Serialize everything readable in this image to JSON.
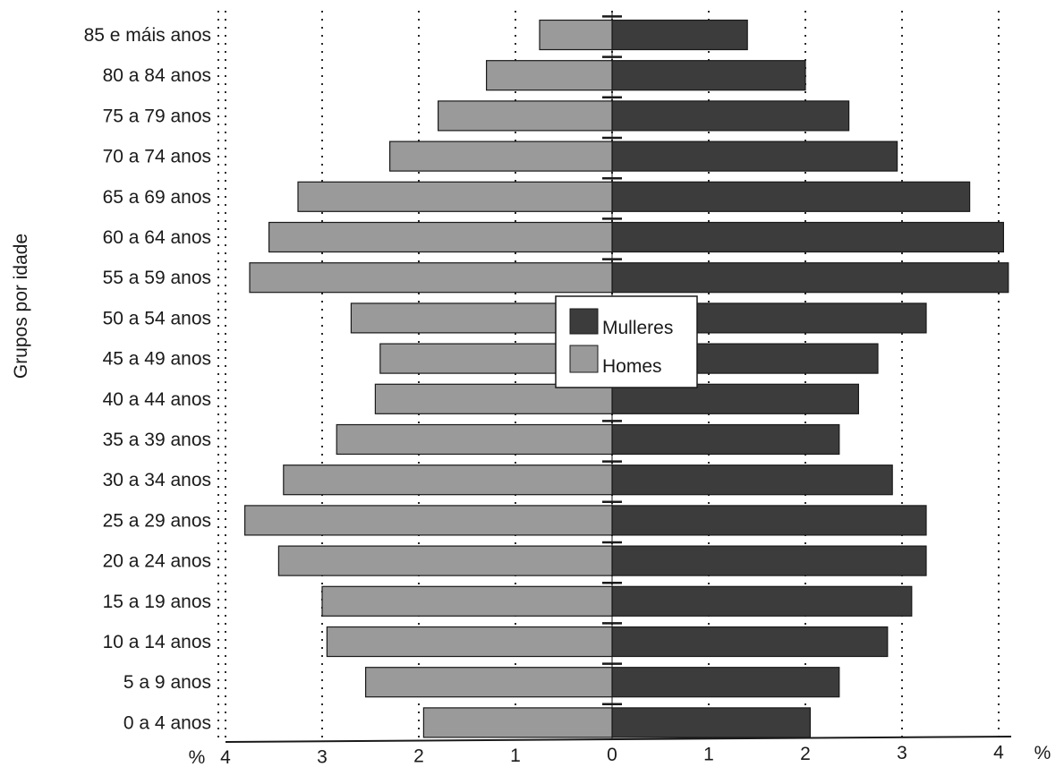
{
  "chart_data": {
    "type": "bar",
    "orientation": "horizontal",
    "layout": "population-pyramid",
    "ylabel": "Grupos por idade",
    "x_unit_left": "%",
    "x_unit_right": "%",
    "xlim": [
      -4,
      4
    ],
    "x_ticks": [
      -4,
      -3,
      -2,
      -1,
      0,
      1,
      2,
      3,
      4
    ],
    "x_tick_labels": [
      "4",
      "3",
      "2",
      "1",
      "0",
      "1",
      "2",
      "3",
      "4"
    ],
    "grid": "vertical dotted",
    "legend_position": "center",
    "categories": [
      "85 e máis anos",
      "80 a 84 anos",
      "75 a 79 anos",
      "70 a 74 anos",
      "65 a 69 anos",
      "60 a 64 anos",
      "55 a 59 anos",
      "50 a 54 anos",
      "45 a 49 anos",
      "40 a 44 anos",
      "35 a 39 anos",
      "30 a 34 anos",
      "25 a 29 anos",
      "20 a 24 anos",
      "15 a 19 anos",
      "10 a 14 anos",
      "5 a 9 anos",
      "0 a 4 anos"
    ],
    "series": [
      {
        "name": "Mulleres",
        "side": "right",
        "color": "#3c3c3c",
        "values": [
          1.4,
          2.0,
          2.45,
          2.95,
          3.7,
          4.05,
          4.1,
          3.25,
          2.75,
          2.55,
          2.35,
          2.9,
          3.25,
          3.25,
          3.1,
          2.85,
          2.35,
          2.05
        ]
      },
      {
        "name": "Homes",
        "side": "left",
        "color": "#9a9a9a",
        "values": [
          0.75,
          1.3,
          1.8,
          2.3,
          3.25,
          3.55,
          3.75,
          2.7,
          2.4,
          2.45,
          2.85,
          3.4,
          3.8,
          3.45,
          3.0,
          2.95,
          2.55,
          1.95
        ]
      }
    ]
  }
}
